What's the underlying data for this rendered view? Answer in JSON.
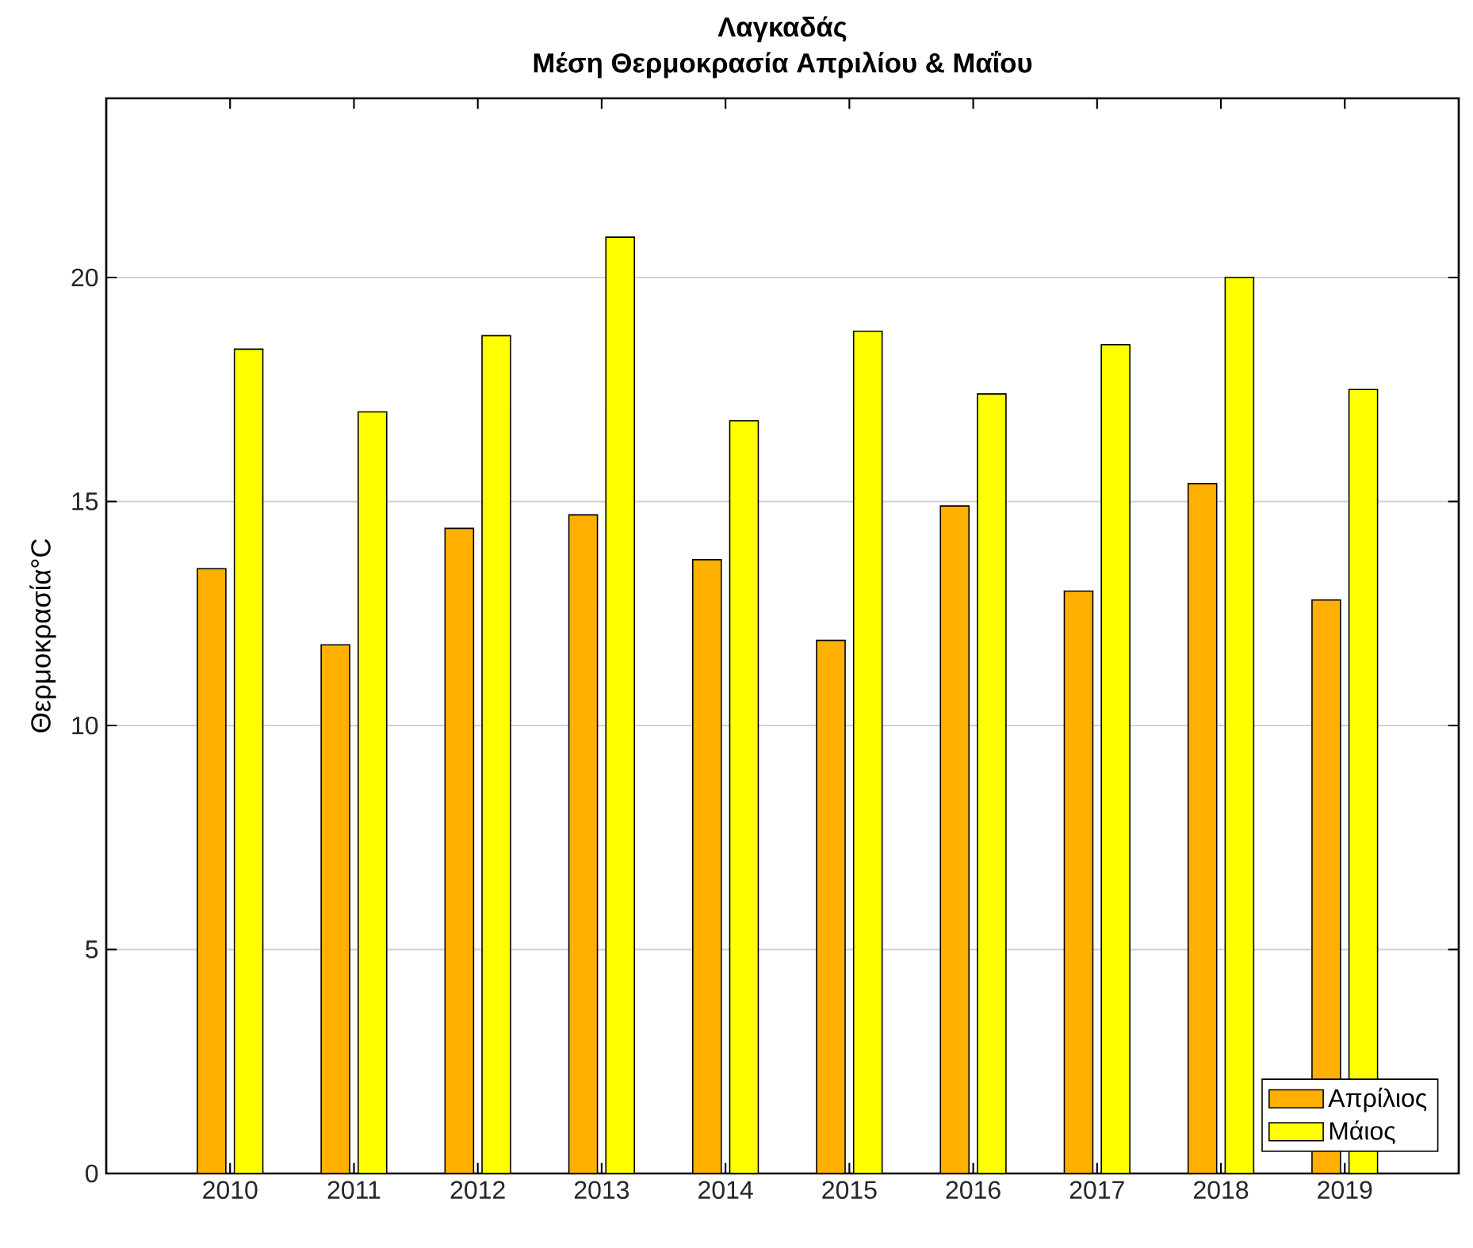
{
  "chart_data": {
    "type": "bar",
    "title": "Λαγκαδάς",
    "subtitle": "Μέση Θερμοκρασία Απριλίου & Μαΐου",
    "ylabel": "Θερμοκρασία°C",
    "categories": [
      "2010",
      "2011",
      "2012",
      "2013",
      "2014",
      "2015",
      "2016",
      "2017",
      "2018",
      "2019"
    ],
    "series": [
      {
        "name": "Απρίλιος",
        "color": "#ffb000",
        "values": [
          13.5,
          11.8,
          14.4,
          14.7,
          13.7,
          11.9,
          14.9,
          13.0,
          15.4,
          12.8
        ]
      },
      {
        "name": "Μάιος",
        "color": "#ffff00",
        "values": [
          18.4,
          17.0,
          18.7,
          20.9,
          16.8,
          18.8,
          17.4,
          18.5,
          20.0,
          17.5
        ]
      }
    ],
    "ylim": [
      0,
      24
    ],
    "yticks": [
      0,
      5,
      10,
      15,
      20
    ],
    "grid": "y",
    "legend": "bottom right"
  }
}
